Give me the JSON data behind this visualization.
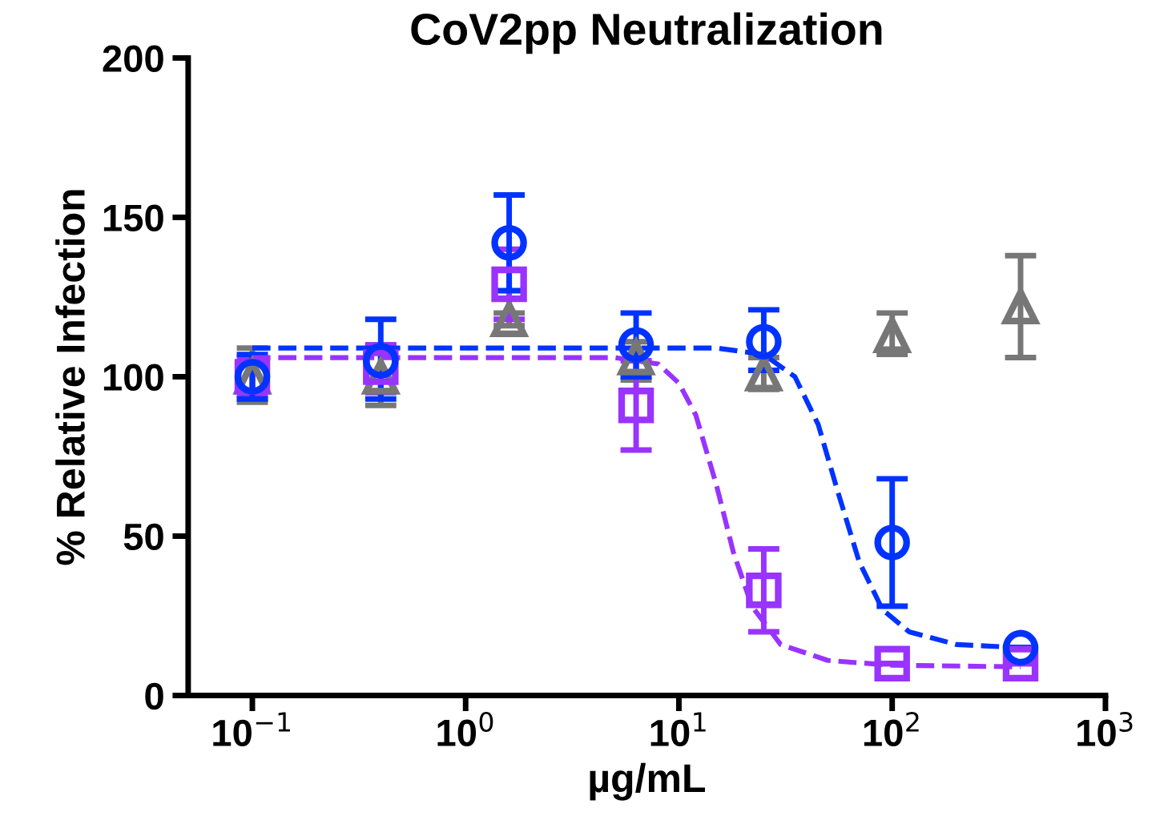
{
  "chart_data": {
    "type": "scatter",
    "title": "CoV2pp Neutralization",
    "xlabel": "µg/mL",
    "ylabel": "% Relative Infection",
    "log": "x",
    "xlim": [
      0.05,
      1000
    ],
    "xticks": [
      {
        "value": 0.1,
        "label": "10$^{−1}$"
      },
      {
        "value": 1,
        "label": "10$^{0}$"
      },
      {
        "value": 10,
        "label": "10$^{1}$"
      },
      {
        "value": 100,
        "label": "10$^{2}$"
      },
      {
        "value": 1000,
        "label": "10$^{3}$"
      }
    ],
    "ylim": [
      0,
      200
    ],
    "yticks": [
      0,
      50,
      100,
      150,
      200
    ],
    "grid": false,
    "legend": false,
    "series": [
      {
        "color": "#777777",
        "marker": "triangle",
        "x": [
          0.1,
          0.4,
          1.6,
          6.3,
          25,
          100,
          400
        ],
        "values": [
          100,
          100,
          118,
          106,
          101,
          113,
          122
        ],
        "errors": [
          [
            92,
            109
          ],
          [
            91,
            110
          ],
          [
            116,
            120
          ],
          [
            99,
            111
          ],
          [
            96,
            106
          ],
          [
            107,
            120
          ],
          [
            106,
            138
          ]
        ]
      },
      {
        "color": "#9933ff",
        "marker": "square",
        "x": [
          0.1,
          0.4,
          1.6,
          6.3,
          25,
          100,
          400
        ],
        "values": [
          100,
          103,
          129,
          91,
          33,
          10,
          10
        ],
        "errors": [
          [
            94,
            106
          ],
          [
            95,
            110
          ],
          [
            118,
            140
          ],
          [
            77,
            105
          ],
          [
            20,
            46
          ],
          null,
          null
        ]
      },
      {
        "color": "#0033ff",
        "marker": "circle",
        "x": [
          0.1,
          0.4,
          1.6,
          6.3,
          25,
          100,
          400
        ],
        "values": [
          100,
          105,
          142,
          110,
          111,
          48,
          15
        ],
        "errors": [
          [
            93,
            107
          ],
          [
            93,
            118
          ],
          [
            127,
            157
          ],
          [
            100,
            120
          ],
          [
            102,
            121
          ],
          [
            28,
            68
          ],
          null
        ]
      },
      {
        "type": "line",
        "color": "#9933ff",
        "line_style": "dashed",
        "marker": "none",
        "x": [
          0.1,
          5,
          8,
          10,
          12,
          15,
          18,
          22,
          30,
          50,
          100,
          400
        ],
        "values": [
          106,
          106,
          104,
          98,
          88,
          66,
          45,
          28,
          16,
          11,
          9.5,
          9
        ]
      },
      {
        "type": "line",
        "color": "#0033ff",
        "line_style": "dashed",
        "marker": "none",
        "x": [
          0.1,
          15,
          25,
          35,
          45,
          55,
          70,
          90,
          120,
          200,
          400
        ],
        "values": [
          109,
          109,
          107,
          100,
          85,
          65,
          42,
          27,
          20,
          16,
          15
        ]
      }
    ]
  }
}
